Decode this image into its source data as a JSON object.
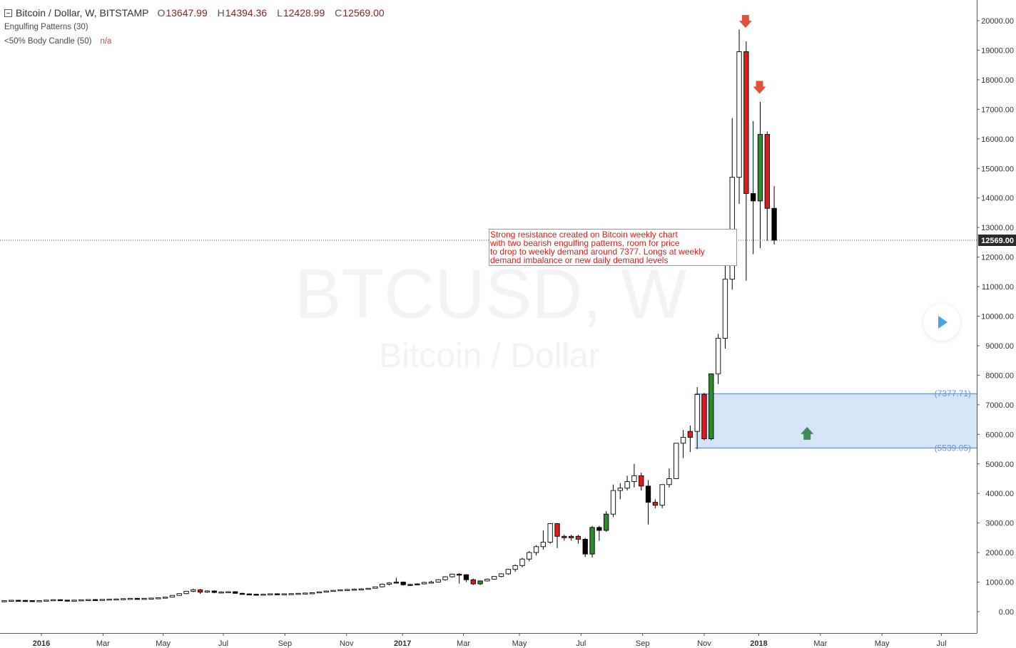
{
  "header": {
    "symbol_title": "Bitcoin / Dollar, W, BITSTAMP",
    "ohlc": [
      {
        "key": "O",
        "value": "13647.99"
      },
      {
        "key": "H",
        "value": "14394.36"
      },
      {
        "key": "L",
        "value": "12428.99"
      },
      {
        "key": "C",
        "value": "12569.00"
      }
    ],
    "indicators": [
      {
        "label": "Engulfing Patterns (30)",
        "value": ""
      },
      {
        "label": "<50% Body Candle (50)",
        "value": "n/a"
      }
    ]
  },
  "watermark": {
    "symbol": "BTCUSD, W",
    "description": "Bitcoin / Dollar"
  },
  "annotation": {
    "lines": [
      "Strong resistance created on Bitcoin weekly chart",
      "with two bearish engulfing patterns, room for price",
      "to drop to weekly demand around 7377. Longs at weekly",
      "demand imbalance or new daily demand levels"
    ]
  },
  "colors": {
    "bull_body": "#ffffff",
    "bear_body": "#000000",
    "engulf_bull": "#2e8b2e",
    "engulf_bear": "#e01b1b",
    "zone_fill": "#d6e4f8",
    "zone_line": "#4a7bd0",
    "arrow_down": "#e0533a",
    "arrow_up": "#3e8a5a",
    "price_label_bg": "#2a2a2a",
    "axis_text": "#333333"
  },
  "chart_data": {
    "type": "candlestick",
    "timeframe": "W",
    "ylim": [
      -600,
      20600
    ],
    "y_ticks": [
      "0.00",
      "1000.00",
      "2000.00",
      "3000.00",
      "4000.00",
      "5000.00",
      "6000.00",
      "7000.00",
      "8000.00",
      "9000.00",
      "10000.00",
      "11000.00",
      "12000.00",
      "13000.00",
      "14000.00",
      "15000.00",
      "16000.00",
      "17000.00",
      "18000.00",
      "19000.00",
      "20000.00"
    ],
    "x_ticks": [
      {
        "label": "2016",
        "week": 5.3,
        "bold": true
      },
      {
        "label": "Mar",
        "week": 14.1,
        "bold": false
      },
      {
        "label": "May",
        "week": 22.7,
        "bold": false
      },
      {
        "label": "Jul",
        "week": 31.3,
        "bold": false
      },
      {
        "label": "Sep",
        "week": 40.1,
        "bold": false
      },
      {
        "label": "Nov",
        "week": 48.9,
        "bold": false
      },
      {
        "label": "2017",
        "week": 56.9,
        "bold": true
      },
      {
        "label": "Mar",
        "week": 65.6,
        "bold": false
      },
      {
        "label": "May",
        "week": 73.6,
        "bold": false
      },
      {
        "label": "Jul",
        "week": 82.4,
        "bold": false
      },
      {
        "label": "Sep",
        "week": 91.2,
        "bold": false
      },
      {
        "label": "Nov",
        "week": 100.0,
        "bold": false
      },
      {
        "label": "2018",
        "week": 107.8,
        "bold": true
      },
      {
        "label": "Mar",
        "week": 116.6,
        "bold": false
      },
      {
        "label": "May",
        "week": 125.4,
        "bold": false
      },
      {
        "label": "Jul",
        "week": 133.9,
        "bold": false
      }
    ],
    "last_price": 12569.0,
    "last_price_label": "12569.00",
    "demand_zone": {
      "top": 7377.71,
      "bottom": 5539.05,
      "top_label": "(7377.71)",
      "bottom_label": "(5539.05)",
      "start_week": 99.0
    },
    "signals": [
      {
        "type": "down",
        "week": 105.9,
        "price": 19950
      },
      {
        "type": "down",
        "week": 107.9,
        "price": 17720
      },
      {
        "type": "up",
        "week": 114.7,
        "price": 6060
      }
    ],
    "candles": [
      [
        360,
        382,
        350,
        370,
        0
      ],
      [
        370,
        392,
        360,
        385,
        0
      ],
      [
        385,
        400,
        372,
        380,
        0
      ],
      [
        380,
        395,
        365,
        375,
        0
      ],
      [
        375,
        385,
        355,
        365,
        0
      ],
      [
        365,
        380,
        352,
        372,
        0
      ],
      [
        372,
        395,
        365,
        390,
        0
      ],
      [
        390,
        410,
        380,
        405,
        0
      ],
      [
        405,
        412,
        385,
        390,
        0
      ],
      [
        390,
        400,
        365,
        370,
        0
      ],
      [
        370,
        395,
        360,
        390,
        0
      ],
      [
        390,
        410,
        380,
        400,
        0
      ],
      [
        400,
        420,
        390,
        410,
        0
      ],
      [
        410,
        425,
        395,
        405,
        0
      ],
      [
        405,
        420,
        395,
        415,
        0
      ],
      [
        415,
        432,
        405,
        425,
        0
      ],
      [
        425,
        440,
        415,
        430,
        0
      ],
      [
        430,
        450,
        420,
        440,
        0
      ],
      [
        440,
        460,
        430,
        450,
        0
      ],
      [
        450,
        465,
        435,
        445,
        0
      ],
      [
        445,
        460,
        430,
        450,
        0
      ],
      [
        450,
        470,
        440,
        460,
        0
      ],
      [
        460,
        480,
        450,
        470,
        0
      ],
      [
        470,
        500,
        460,
        490,
        0
      ],
      [
        490,
        560,
        480,
        550,
        0
      ],
      [
        550,
        620,
        540,
        610,
        0
      ],
      [
        610,
        700,
        590,
        690,
        0
      ],
      [
        690,
        780,
        660,
        740,
        0
      ],
      [
        740,
        770,
        600,
        660,
        2
      ],
      [
        660,
        720,
        640,
        700,
        0
      ],
      [
        700,
        720,
        620,
        650,
        0
      ],
      [
        650,
        690,
        620,
        665,
        0
      ],
      [
        665,
        690,
        640,
        675,
        0
      ],
      [
        675,
        680,
        610,
        620,
        0
      ],
      [
        620,
        640,
        580,
        600,
        0
      ],
      [
        600,
        620,
        570,
        590,
        0
      ],
      [
        590,
        605,
        560,
        575,
        0
      ],
      [
        575,
        600,
        555,
        590,
        0
      ],
      [
        590,
        615,
        580,
        605,
        0
      ],
      [
        605,
        620,
        590,
        600,
        0
      ],
      [
        600,
        615,
        585,
        605,
        0
      ],
      [
        605,
        620,
        595,
        610,
        0
      ],
      [
        610,
        630,
        600,
        620,
        0
      ],
      [
        620,
        640,
        610,
        630,
        0
      ],
      [
        630,
        650,
        615,
        640,
        0
      ],
      [
        640,
        680,
        630,
        670,
        0
      ],
      [
        670,
        710,
        660,
        700,
        0
      ],
      [
        700,
        730,
        690,
        720,
        0
      ],
      [
        720,
        750,
        710,
        740,
        0
      ],
      [
        740,
        770,
        720,
        750,
        0
      ],
      [
        750,
        780,
        735,
        760,
        0
      ],
      [
        760,
        790,
        740,
        770,
        0
      ],
      [
        770,
        800,
        750,
        790,
        0
      ],
      [
        790,
        850,
        780,
        840,
        0
      ],
      [
        840,
        950,
        820,
        930,
        0
      ],
      [
        930,
        1000,
        890,
        970,
        0
      ],
      [
        970,
        1150,
        950,
        1000,
        2
      ],
      [
        1000,
        1020,
        880,
        910,
        1
      ],
      [
        910,
        940,
        880,
        920,
        3
      ],
      [
        920,
        960,
        900,
        940,
        3
      ],
      [
        940,
        1010,
        920,
        990,
        0
      ],
      [
        990,
        1040,
        960,
        1000,
        0
      ],
      [
        1000,
        1100,
        980,
        1080,
        0
      ],
      [
        1080,
        1200,
        1050,
        1180,
        0
      ],
      [
        1180,
        1290,
        1150,
        1270,
        0
      ],
      [
        1270,
        1300,
        950,
        1250,
        2
      ],
      [
        1250,
        1260,
        1000,
        1080,
        1
      ],
      [
        1080,
        1120,
        900,
        940,
        2
      ],
      [
        940,
        1050,
        900,
        1040,
        3
      ],
      [
        1040,
        1120,
        1020,
        1100,
        0
      ],
      [
        1100,
        1200,
        1080,
        1190,
        0
      ],
      [
        1190,
        1300,
        1160,
        1280,
        0
      ],
      [
        1280,
        1450,
        1250,
        1430,
        0
      ],
      [
        1430,
        1600,
        1350,
        1560,
        0
      ],
      [
        1560,
        1820,
        1500,
        1780,
        0
      ],
      [
        1780,
        2050,
        1700,
        2000,
        0
      ],
      [
        2000,
        2250,
        1900,
        2200,
        0
      ],
      [
        2200,
        2750,
        2100,
        2350,
        0
      ],
      [
        2350,
        3000,
        2300,
        2980,
        0
      ],
      [
        2980,
        3000,
        2150,
        2550,
        2
      ],
      [
        2550,
        2600,
        2400,
        2500,
        2
      ],
      [
        2500,
        2600,
        2400,
        2550,
        2
      ],
      [
        2550,
        2600,
        2300,
        2450,
        2
      ],
      [
        2450,
        2500,
        1850,
        1950,
        1
      ],
      [
        1950,
        2900,
        1830,
        2850,
        3
      ],
      [
        2850,
        2900,
        2400,
        2750,
        0
      ],
      [
        2750,
        3400,
        2700,
        3300,
        3
      ],
      [
        3300,
        4300,
        3200,
        4100,
        0
      ],
      [
        4100,
        4350,
        3800,
        4180,
        0
      ],
      [
        4180,
        4600,
        4100,
        4400,
        0
      ],
      [
        4400,
        5000,
        4200,
        4600,
        0
      ],
      [
        4600,
        4700,
        4100,
        4250,
        2
      ],
      [
        4250,
        4450,
        2950,
        3700,
        1
      ],
      [
        3700,
        3800,
        3500,
        3600,
        2
      ],
      [
        3600,
        4300,
        3500,
        4300,
        0
      ],
      [
        4300,
        4850,
        4200,
        4500,
        0
      ],
      [
        4500,
        5700,
        4500,
        5700,
        0
      ],
      [
        5700,
        6150,
        5200,
        5900,
        0
      ],
      [
        5900,
        6300,
        5400,
        6100,
        2
      ],
      [
        6100,
        7600,
        5500,
        7350,
        0
      ],
      [
        7350,
        7400,
        5800,
        5850,
        2
      ],
      [
        5850,
        8050,
        5800,
        8050,
        3
      ],
      [
        8050,
        9400,
        7700,
        9250,
        0
      ],
      [
        9250,
        11900,
        8900,
        11250,
        0
      ],
      [
        11250,
        16700,
        10900,
        14700,
        0
      ],
      [
        14700,
        19700,
        13800,
        18950,
        0
      ],
      [
        18950,
        19300,
        11200,
        14150,
        2
      ],
      [
        14150,
        16600,
        12100,
        13900,
        1
      ],
      [
        13900,
        17250,
        12300,
        16150,
        3
      ],
      [
        16150,
        16250,
        12550,
        13650,
        2
      ],
      [
        13650,
        14400,
        12429,
        12569,
        1
      ]
    ]
  }
}
